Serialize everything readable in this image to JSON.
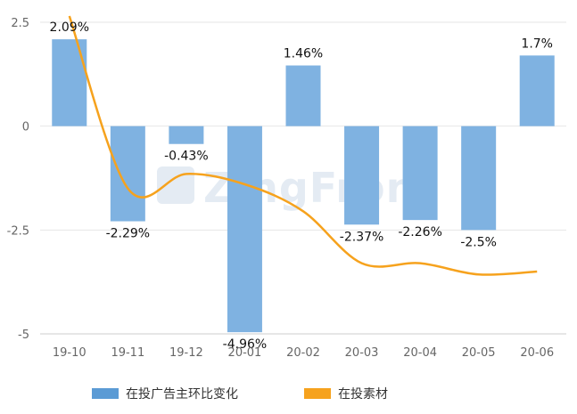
{
  "chart_data": {
    "type": "bar",
    "categories": [
      "19-10",
      "19-11",
      "19-12",
      "20-01",
      "20-02",
      "20-03",
      "20-04",
      "20-05",
      "20-06"
    ],
    "series": [
      {
        "name": "在投广告主环比变化",
        "type": "bar",
        "color": "#7fb2e1",
        "values": [
          2.09,
          -2.29,
          -0.43,
          -4.96,
          1.46,
          -2.37,
          -2.26,
          -2.5,
          1.7
        ],
        "labels": [
          "2.09%",
          "-2.29%",
          "-0.43%",
          "-4.96%",
          "1.46%",
          "-2.37%",
          "-2.26%",
          "-2.5%",
          "1.7%"
        ]
      },
      {
        "name": "在投素材",
        "type": "line",
        "color": "#f6a21d",
        "values": [
          2.65,
          -1.5,
          -1.15,
          -1.4,
          -2.05,
          -3.3,
          -3.3,
          -3.57,
          -3.5
        ]
      }
    ],
    "yticks": [
      "2.5",
      "0",
      "-2.5",
      "-5"
    ],
    "ytick_values": [
      2.5,
      0,
      -2.5,
      -5
    ],
    "ylim": [
      -5,
      2.5
    ],
    "grid": true,
    "legend_position": "bottom",
    "watermark": "ZingFront"
  }
}
